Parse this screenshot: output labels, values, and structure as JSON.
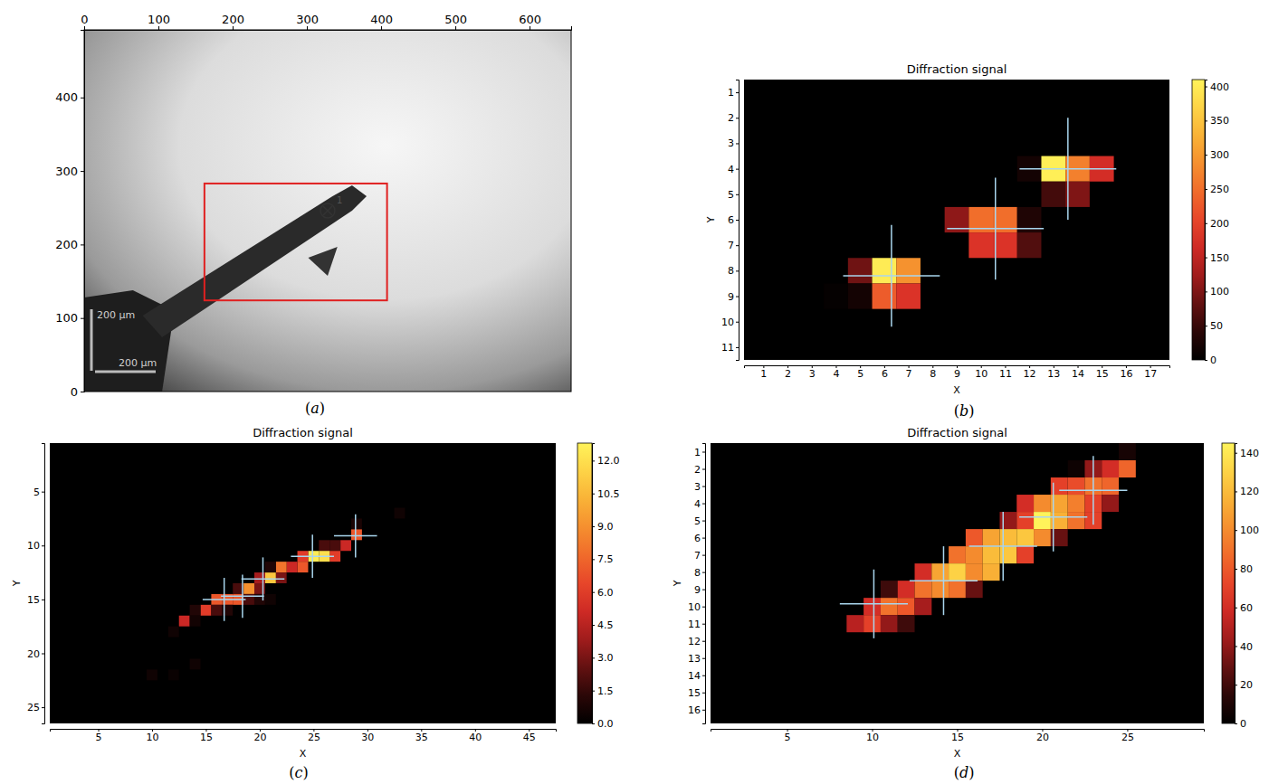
{
  "chart_data": [
    {
      "type": "image",
      "label": "(a)",
      "xlim": [
        0,
        656
      ],
      "ylim": [
        0,
        492
      ],
      "xticks": [
        0,
        100,
        200,
        300,
        400,
        500,
        600
      ],
      "yticks": [
        0,
        100,
        200,
        300,
        400
      ],
      "region": {
        "x": [
          162,
          408
        ],
        "y": [
          124,
          283
        ]
      },
      "marker_point": {
        "x": 328,
        "y": 246,
        "label": "1"
      },
      "scale_bar_labels": [
        "200 µm",
        "200 µm"
      ]
    },
    {
      "type": "heatmap",
      "label": "(b)",
      "title": "Diffraction signal",
      "x_label": "X",
      "y_label": "Y",
      "xlim": [
        0.2,
        17.8
      ],
      "ylim": [
        11.5,
        0.5
      ],
      "xticks": [
        1,
        2,
        3,
        4,
        5,
        6,
        7,
        8,
        9,
        10,
        11,
        12,
        13,
        14,
        15,
        16,
        17
      ],
      "yticks": [
        1,
        2,
        3,
        4,
        5,
        6,
        7,
        8,
        9,
        10,
        11
      ],
      "cells": [
        [
          12,
          4,
          20
        ],
        [
          13,
          4,
          405
        ],
        [
          14,
          4,
          270
        ],
        [
          15,
          4,
          170
        ],
        [
          13,
          5,
          60
        ],
        [
          14,
          5,
          100
        ],
        [
          9,
          6,
          110
        ],
        [
          10,
          6,
          250
        ],
        [
          11,
          6,
          250
        ],
        [
          12,
          6,
          30
        ],
        [
          10,
          7,
          180
        ],
        [
          11,
          7,
          180
        ],
        [
          12,
          7,
          70
        ],
        [
          5,
          8,
          90
        ],
        [
          6,
          8,
          400
        ],
        [
          7,
          8,
          290
        ],
        [
          4,
          9,
          5
        ],
        [
          5,
          9,
          20
        ],
        [
          6,
          9,
          230
        ],
        [
          7,
          9,
          180
        ]
      ],
      "colorbar": {
        "range": [
          0,
          410
        ],
        "ticks": [
          0,
          50,
          100,
          150,
          200,
          250,
          300,
          350,
          400
        ]
      },
      "centers": [
        [
          13.6,
          4.0
        ],
        [
          10.6,
          6.35
        ],
        [
          6.3,
          8.2
        ]
      ]
    },
    {
      "type": "heatmap",
      "label": "(c)",
      "title": "Diffraction signal",
      "x_label": "X",
      "y_label": "Y",
      "xlim": [
        0.5,
        47.5
      ],
      "ylim": [
        26.5,
        0.5
      ],
      "xticks": [
        5,
        10,
        15,
        20,
        25,
        30,
        35,
        40,
        45
      ],
      "yticks": [
        5,
        10,
        15,
        20,
        25
      ],
      "cells": [
        [
          33,
          7,
          0.5
        ],
        [
          29,
          8,
          0.8
        ],
        [
          29,
          9,
          7
        ],
        [
          28,
          10,
          5
        ],
        [
          27,
          10,
          2
        ],
        [
          26,
          10,
          2
        ],
        [
          27,
          11,
          6
        ],
        [
          25,
          11,
          12.5
        ],
        [
          26,
          11,
          12
        ],
        [
          24,
          11,
          6
        ],
        [
          24,
          12,
          7
        ],
        [
          23,
          12,
          5
        ],
        [
          22,
          12,
          8
        ],
        [
          22,
          13,
          3
        ],
        [
          21,
          13,
          11
        ],
        [
          20,
          13,
          4
        ],
        [
          21,
          12,
          1
        ],
        [
          20,
          14,
          3
        ],
        [
          19,
          14,
          9
        ],
        [
          18,
          14,
          2
        ],
        [
          18,
          15,
          7
        ],
        [
          17,
          15,
          7
        ],
        [
          16,
          15,
          7
        ],
        [
          19,
          15,
          2
        ],
        [
          15,
          16,
          6
        ],
        [
          16,
          16,
          2
        ],
        [
          14,
          16,
          1
        ],
        [
          17,
          16,
          1
        ],
        [
          20,
          15,
          1
        ],
        [
          21,
          15,
          0.5
        ],
        [
          13,
          17,
          5
        ],
        [
          14,
          17,
          0.6
        ],
        [
          12,
          18,
          0.5
        ],
        [
          14,
          21,
          0.5
        ],
        [
          10,
          22,
          0.5
        ],
        [
          12,
          22,
          0.3
        ]
      ],
      "colorbar": {
        "range": [
          0,
          12.8
        ],
        "ticks": [
          {
            "value": 0,
            "label": "0.0"
          },
          1.5,
          {
            "value": 3,
            "label": "3.0"
          },
          4.5,
          {
            "value": 6,
            "label": "6.0"
          },
          7.5,
          {
            "value": 9,
            "label": "9.0"
          },
          10.5,
          {
            "value": 12,
            "label": "12.0"
          }
        ]
      },
      "centers": [
        [
          16.7,
          15.0
        ],
        [
          18.4,
          14.7
        ],
        [
          20.3,
          13.1
        ],
        [
          24.9,
          11.0
        ],
        [
          28.9,
          9.1
        ]
      ]
    },
    {
      "type": "heatmap",
      "label": "(d)",
      "title": "Diffraction signal",
      "x_label": "X",
      "y_label": "Y",
      "xlim": [
        0.5,
        29.5
      ],
      "ylim": [
        16.8,
        0.5
      ],
      "xticks": [
        5,
        10,
        15,
        20,
        25
      ],
      "yticks": [
        1,
        2,
        3,
        4,
        5,
        6,
        7,
        8,
        9,
        10,
        11,
        12,
        13,
        14,
        15,
        16
      ],
      "cells": [
        [
          25,
          1,
          8
        ],
        [
          22,
          2,
          5
        ],
        [
          23,
          2,
          40
        ],
        [
          24,
          2,
          60
        ],
        [
          25,
          2,
          85
        ],
        [
          21,
          3,
          70
        ],
        [
          22,
          3,
          75
        ],
        [
          23,
          3,
          90
        ],
        [
          24,
          3,
          85
        ],
        [
          19,
          4,
          60
        ],
        [
          20,
          4,
          100
        ],
        [
          21,
          4,
          110
        ],
        [
          22,
          4,
          95
        ],
        [
          23,
          4,
          70
        ],
        [
          24,
          4,
          40
        ],
        [
          18,
          5,
          40
        ],
        [
          19,
          5,
          70
        ],
        [
          20,
          5,
          145
        ],
        [
          21,
          5,
          115
        ],
        [
          22,
          5,
          90
        ],
        [
          23,
          5,
          70
        ],
        [
          16,
          6,
          80
        ],
        [
          17,
          6,
          110
        ],
        [
          18,
          6,
          120
        ],
        [
          19,
          6,
          125
        ],
        [
          20,
          6,
          100
        ],
        [
          21,
          6,
          30
        ],
        [
          15,
          7,
          90
        ],
        [
          16,
          7,
          100
        ],
        [
          17,
          7,
          120
        ],
        [
          18,
          7,
          125
        ],
        [
          19,
          7,
          70
        ],
        [
          13,
          8,
          60
        ],
        [
          14,
          8,
          110
        ],
        [
          15,
          8,
          130
        ],
        [
          16,
          8,
          100
        ],
        [
          17,
          8,
          115
        ],
        [
          11,
          9,
          20
        ],
        [
          12,
          9,
          60
        ],
        [
          13,
          9,
          90
        ],
        [
          14,
          9,
          100
        ],
        [
          15,
          9,
          90
        ],
        [
          16,
          9,
          30
        ],
        [
          10,
          10,
          60
        ],
        [
          11,
          10,
          90
        ],
        [
          12,
          10,
          80
        ],
        [
          13,
          10,
          45
        ],
        [
          9,
          11,
          50
        ],
        [
          10,
          11,
          70
        ],
        [
          11,
          11,
          40
        ],
        [
          12,
          11,
          20
        ]
      ],
      "colorbar": {
        "range": [
          0,
          145
        ],
        "ticks": [
          0,
          20,
          40,
          60,
          80,
          100,
          120,
          140
        ]
      },
      "centers": [
        [
          23.0,
          3.25
        ],
        [
          20.65,
          4.8
        ],
        [
          17.7,
          6.5
        ],
        [
          14.2,
          8.5
        ],
        [
          10.1,
          9.85
        ]
      ]
    }
  ]
}
